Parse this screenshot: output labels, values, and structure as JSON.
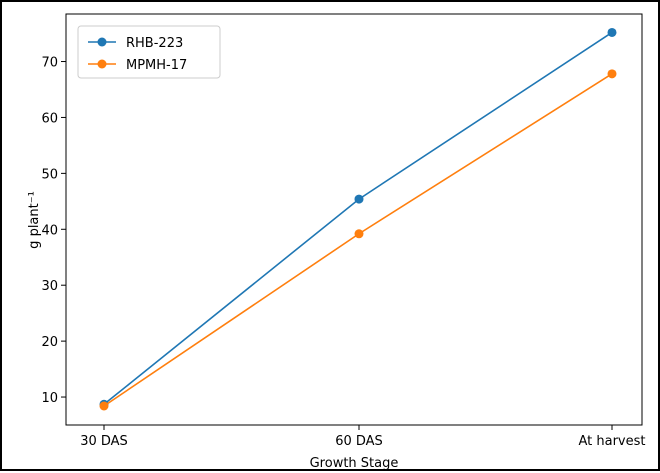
{
  "chart_data": {
    "type": "line",
    "title": "",
    "xlabel": "Growth Stage",
    "ylabel": "g plant⁻¹",
    "categories": [
      "30 DAS",
      "60 DAS",
      "At harvest"
    ],
    "series": [
      {
        "name": "RHB-223",
        "values": [
          8.7,
          45.4,
          75.2
        ],
        "color": "#1f77b4"
      },
      {
        "name": "MPMH-17",
        "values": [
          8.4,
          39.2,
          67.8
        ],
        "color": "#ff7f0e"
      }
    ],
    "ylim": [
      5,
      78.5
    ],
    "yticks": [
      10,
      20,
      30,
      40,
      50,
      60,
      70
    ],
    "grid": false,
    "legend": "top-left"
  }
}
